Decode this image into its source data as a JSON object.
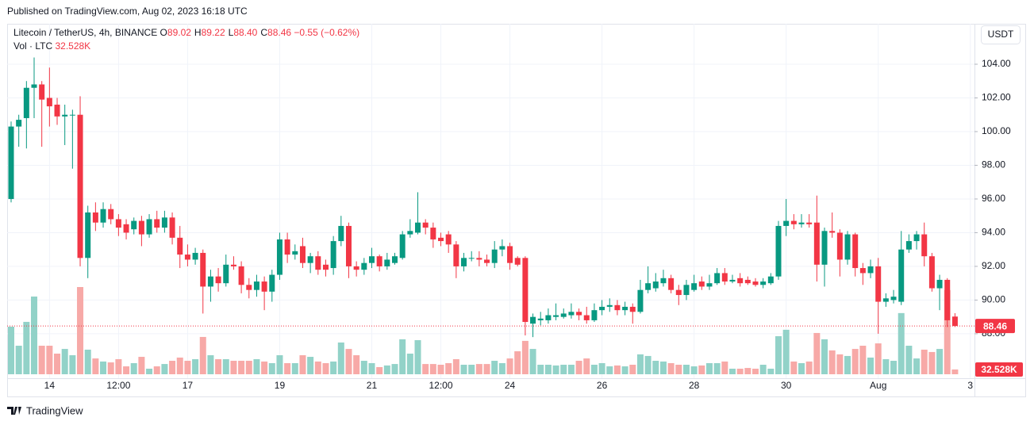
{
  "published": "Published on TradingView.com, Aug 02, 2023 16:18 UTC",
  "brand": "TradingView",
  "chart_data": {
    "type": "candlestick",
    "legend": {
      "symbol": "Litecoin / TetherUS, 4h, BINANCE",
      "ohlc": [
        {
          "key": "O",
          "value": "89.02"
        },
        {
          "key": "H",
          "value": "89.22"
        },
        {
          "key": "L",
          "value": "88.40"
        },
        {
          "key": "C",
          "value": "88.46"
        }
      ],
      "change": "−0.55 (−0.62%)"
    },
    "volume_legend": {
      "label": "Vol · LTC",
      "value": "32.528K"
    },
    "currency": "USDT",
    "up_color": "#089981",
    "down_color": "#f23645",
    "volume_up_color": "#92d2c8",
    "volume_down_color": "#f7a9a7",
    "grid": true,
    "categories": [
      null,
      null,
      null,
      null,
      null,
      "14",
      null,
      null,
      null,
      null,
      null,
      null,
      null,
      null,
      "12:00",
      null,
      null,
      null,
      null,
      null,
      null,
      null,
      null,
      "17",
      null,
      null,
      null,
      null,
      null,
      null,
      null,
      null,
      null,
      null,
      null,
      "19",
      null,
      null,
      null,
      null,
      null,
      null,
      null,
      null,
      null,
      null,
      null,
      "21",
      null,
      null,
      null,
      null,
      null,
      null,
      null,
      null,
      "12:00",
      null,
      null,
      null,
      null,
      null,
      null,
      null,
      null,
      "24",
      null,
      null,
      null,
      null,
      null,
      null,
      null,
      null,
      null,
      null,
      null,
      "26",
      null,
      null,
      null,
      null,
      null,
      null,
      null,
      null,
      null,
      null,
      null,
      "28",
      null,
      null,
      null,
      null,
      null,
      null,
      null,
      null,
      null,
      null,
      null,
      "30",
      null,
      null,
      null,
      null,
      null,
      null,
      null,
      null,
      null,
      null,
      null,
      "Aug",
      null,
      null,
      null,
      null,
      null,
      null,
      null,
      null,
      null,
      null,
      null,
      "3"
    ],
    "open": [
      96.0,
      100.3,
      100.8,
      102.6,
      102.8,
      102.0,
      101.6,
      100.9,
      101.0,
      101.0,
      92.5,
      95.2,
      94.6,
      95.4,
      94.8,
      94.5,
      94.2,
      94.7,
      93.9,
      94.8,
      94.3,
      94.9,
      93.7,
      92.7,
      92.4,
      92.8,
      90.8,
      91.4,
      91.0,
      92.1,
      92.0,
      90.9,
      90.6,
      91.1,
      90.5,
      91.5,
      93.6,
      92.7,
      93.2,
      92.2,
      92.6,
      92.1,
      91.9,
      93.5,
      94.4,
      92.0,
      91.8,
      92.2,
      92.6,
      92.0,
      92.2,
      92.5,
      93.9,
      94.0,
      94.6,
      94.3,
      93.7,
      93.9,
      93.3,
      92.0,
      92.5,
      92.5,
      92.4,
      92.2,
      93.0,
      93.2,
      92.5,
      92.5,
      88.6,
      88.8,
      88.8,
      89.0,
      89.0,
      89.1,
      89.3,
      89.1,
      88.8,
      89.4,
      89.6,
      89.7,
      89.4,
      89.6,
      89.3,
      90.6,
      90.7,
      91.0,
      91.3,
      90.6,
      90.3,
      90.6,
      91.1,
      90.8,
      91.0,
      91.6,
      91.1,
      91.3,
      91.2,
      91.1,
      90.9,
      91.0,
      91.4,
      94.4,
      94.7,
      94.5,
      94.6,
      94.6,
      92.1,
      94.1,
      94.0,
      92.4,
      93.9,
      91.9,
      91.6,
      92.0,
      89.9,
      90.0,
      89.9,
      93.0,
      93.5,
      93.9,
      92.6,
      90.7,
      91.2,
      89.02,
      null,
      null
    ],
    "high": [
      100.6,
      101.0,
      103.0,
      104.4,
      103.0,
      103.8,
      102.0,
      101.6,
      101.3,
      102.1,
      95.6,
      95.8,
      95.8,
      95.7,
      95.1,
      94.8,
      94.9,
      95.0,
      95.1,
      95.3,
      95.3,
      95.2,
      94.4,
      93.3,
      93.1,
      93.0,
      91.8,
      91.9,
      92.7,
      92.6,
      92.3,
      91.3,
      91.5,
      91.4,
      91.8,
      94.0,
      94.0,
      93.3,
      93.7,
      92.8,
      92.9,
      92.4,
      93.8,
      95.0,
      94.6,
      92.3,
      92.5,
      93.1,
      92.7,
      92.8,
      92.8,
      94.1,
      94.8,
      96.4,
      94.8,
      94.6,
      94.0,
      94.1,
      93.5,
      92.8,
      92.9,
      92.9,
      92.7,
      93.5,
      93.6,
      93.4,
      92.6,
      92.6,
      89.2,
      89.3,
      89.5,
      89.8,
      89.5,
      89.8,
      89.5,
      89.6,
      89.8,
      90.0,
      90.1,
      90.0,
      89.9,
      89.8,
      91.2,
      92.0,
      91.6,
      91.8,
      91.5,
      90.9,
      91.2,
      91.5,
      91.4,
      91.5,
      91.9,
      91.9,
      91.5,
      91.6,
      91.4,
      91.3,
      91.3,
      91.6,
      94.7,
      96.0,
      95.1,
      95.1,
      95.1,
      96.2,
      94.3,
      95.2,
      94.2,
      94.1,
      94.0,
      92.2,
      92.4,
      92.5,
      90.4,
      90.6,
      94.1,
      93.9,
      94.1,
      94.6,
      92.8,
      91.5,
      91.3,
      89.22,
      null,
      null
    ],
    "low": [
      95.8,
      99.1,
      99.0,
      100.8,
      99.1,
      100.3,
      100.4,
      99.2,
      97.8,
      92.0,
      91.3,
      94.1,
      94.3,
      94.5,
      93.8,
      93.6,
      93.9,
      93.2,
      93.7,
      94.0,
      94.0,
      93.3,
      91.9,
      92.0,
      92.1,
      89.2,
      89.9,
      90.5,
      90.8,
      91.8,
      90.4,
      90.1,
      90.2,
      89.4,
      89.9,
      91.2,
      92.2,
      92.4,
      91.9,
      91.6,
      91.5,
      91.4,
      91.5,
      93.2,
      91.3,
      91.4,
      91.5,
      91.9,
      91.7,
      91.8,
      92.1,
      92.4,
      93.7,
      93.9,
      93.9,
      93.1,
      93.2,
      92.8,
      91.3,
      91.7,
      92.3,
      92.0,
      92.0,
      91.9,
      92.6,
      91.8,
      92.0,
      87.9,
      87.8,
      88.5,
      88.6,
      88.8,
      88.9,
      88.9,
      88.8,
      88.6,
      88.7,
      89.1,
      89.3,
      89.1,
      89.1,
      88.6,
      89.2,
      90.4,
      90.5,
      90.8,
      90.4,
      89.7,
      90.0,
      90.5,
      90.6,
      90.6,
      90.9,
      90.9,
      91.0,
      90.8,
      90.9,
      90.8,
      90.7,
      90.9,
      91.2,
      93.8,
      94.2,
      94.3,
      94.3,
      91.1,
      90.8,
      93.7,
      91.4,
      92.1,
      91.4,
      90.9,
      91.3,
      88.0,
      89.6,
      89.8,
      89.7,
      92.8,
      93.0,
      92.0,
      90.5,
      89.4,
      88.4,
      88.4,
      null,
      null
    ],
    "close": [
      100.3,
      100.7,
      102.6,
      102.8,
      101.9,
      101.5,
      100.9,
      101.0,
      101.0,
      92.5,
      95.2,
      94.6,
      95.4,
      94.8,
      94.3,
      94.0,
      94.7,
      93.9,
      94.8,
      94.3,
      94.9,
      93.7,
      92.7,
      92.4,
      92.8,
      90.8,
      91.4,
      91.0,
      92.1,
      92.0,
      90.9,
      90.6,
      91.1,
      90.5,
      91.5,
      93.6,
      92.7,
      92.9,
      92.2,
      92.6,
      91.8,
      91.8,
      93.5,
      94.4,
      92.0,
      91.8,
      92.2,
      92.6,
      92.0,
      92.4,
      92.6,
      93.9,
      94.1,
      94.6,
      94.3,
      93.6,
      93.5,
      93.3,
      92.0,
      92.5,
      92.5,
      92.4,
      92.2,
      93.0,
      93.2,
      92.2,
      92.1,
      88.7,
      89.0,
      88.9,
      89.1,
      89.1,
      89.2,
      89.3,
      89.1,
      88.8,
      89.4,
      89.6,
      89.7,
      89.4,
      89.6,
      89.3,
      90.6,
      91.0,
      91.1,
      91.3,
      90.6,
      90.3,
      90.9,
      91.0,
      90.8,
      91.0,
      91.6,
      91.1,
      91.2,
      91.0,
      91.0,
      90.9,
      91.1,
      91.4,
      94.4,
      94.7,
      94.5,
      94.6,
      94.5,
      92.1,
      94.1,
      94.0,
      92.4,
      93.9,
      91.9,
      91.6,
      92.0,
      89.9,
      90.1,
      90.2,
      93.0,
      93.5,
      93.9,
      92.6,
      90.7,
      91.2,
      88.8,
      88.46,
      null,
      null
    ],
    "volume": [
      325,
      195,
      358,
      531,
      195,
      195,
      141,
      173,
      130,
      596,
      168,
      108,
      87,
      81,
      103,
      54,
      76,
      119,
      38,
      54,
      70,
      92,
      114,
      92,
      103,
      255,
      130,
      103,
      103,
      92,
      92,
      92,
      103,
      87,
      76,
      130,
      76,
      76,
      130,
      119,
      87,
      76,
      87,
      217,
      173,
      130,
      92,
      76,
      49,
      60,
      70,
      239,
      141,
      233,
      70,
      70,
      65,
      76,
      103,
      65,
      65,
      70,
      70,
      92,
      76,
      108,
      157,
      228,
      173,
      65,
      65,
      60,
      65,
      65,
      92,
      108,
      65,
      76,
      54,
      60,
      54,
      65,
      136,
      125,
      92,
      87,
      76,
      65,
      65,
      54,
      60,
      76,
      76,
      87,
      38,
      38,
      43,
      38,
      65,
      38,
      260,
      304,
      87,
      76,
      87,
      282,
      239,
      163,
      136,
      125,
      173,
      195,
      114,
      211,
      103,
      92,
      418,
      195,
      108,
      168,
      152,
      173,
      575,
      32.528,
      null,
      null
    ],
    "ylim": [
      85.36,
      106.4
    ],
    "yticks": [
      {
        "value": 104,
        "label": "104.00"
      },
      {
        "value": 102,
        "label": "102.00"
      },
      {
        "value": 100,
        "label": "100.00"
      },
      {
        "value": 98,
        "label": "98.00"
      },
      {
        "value": 96,
        "label": "96.00"
      },
      {
        "value": 94,
        "label": "94.00"
      },
      {
        "value": 92,
        "label": "92.00"
      },
      {
        "value": 90,
        "label": "90.00"
      },
      {
        "value": 88,
        "label": "88.00"
      }
    ],
    "price_line": 88.46,
    "last_volume_label": "32.528K"
  }
}
